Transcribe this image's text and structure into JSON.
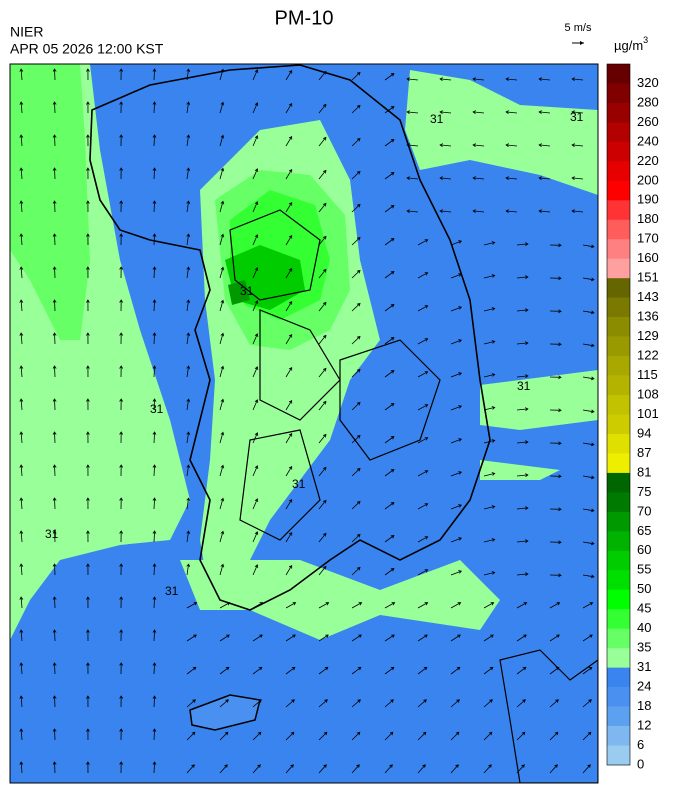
{
  "header": {
    "title": "PM-10",
    "agency": "NIER",
    "datetime": "APR 05 2026 12:00 KST",
    "wind_scale": "5 m/s",
    "unit": "µg/m",
    "unit_power": "3"
  },
  "map": {
    "contour_labels": [
      "31",
      "31",
      "31",
      "31",
      "31",
      "31",
      "31",
      "31"
    ]
  },
  "colorbar": {
    "ticks": [
      320,
      280,
      260,
      240,
      220,
      200,
      190,
      180,
      170,
      160,
      151,
      143,
      136,
      129,
      122,
      115,
      108,
      101,
      94,
      87,
      81,
      75,
      70,
      65,
      60,
      55,
      50,
      45,
      40,
      35,
      31,
      24,
      18,
      12,
      6,
      0
    ],
    "colors": [
      "#660000",
      "#800000",
      "#990000",
      "#b30000",
      "#cc0000",
      "#e60000",
      "#ff0000",
      "#ff3333",
      "#ff5c5c",
      "#ff8080",
      "#ffa0a0",
      "#666600",
      "#7a7a00",
      "#8c8c00",
      "#999900",
      "#a8a800",
      "#b3b300",
      "#c2c200",
      "#cccc00",
      "#e0e000",
      "#eeee00",
      "#006600",
      "#007a00",
      "#009900",
      "#00b300",
      "#00cc00",
      "#00e000",
      "#00ff00",
      "#33ff33",
      "#66ff66",
      "#99ff99",
      "#3a84f0",
      "#4a90f0",
      "#5ca0f0",
      "#7fb8f0",
      "#99ccee"
    ]
  }
}
